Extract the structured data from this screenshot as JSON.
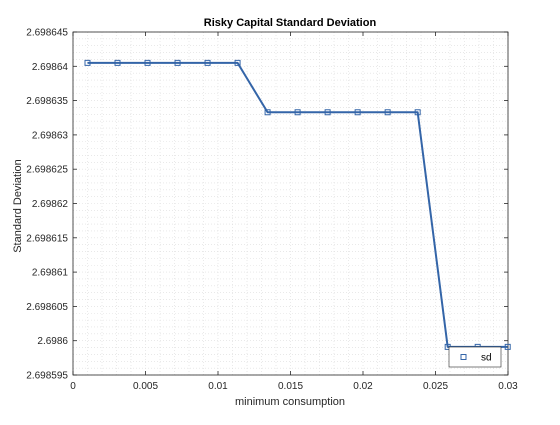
{
  "chart_data": {
    "type": "line",
    "title": "Risky Capital Standard Deviation",
    "xlabel": "minimum consumption",
    "ylabel": "Standard Deviation",
    "xlim": [
      0,
      0.03
    ],
    "ylim": [
      2.698595,
      2.698645
    ],
    "xticks": [
      0,
      0.005,
      0.01,
      0.015,
      0.02,
      0.025,
      0.03
    ],
    "xtick_labels": [
      "0",
      "0.005",
      "0.01",
      "0.015",
      "0.02",
      "0.025",
      "0.03"
    ],
    "yticks": [
      2.698595,
      2.6986,
      2.698605,
      2.69861,
      2.698615,
      2.69862,
      2.698625,
      2.69863,
      2.698635,
      2.69864,
      2.698645
    ],
    "ytick_labels": [
      "2.698595",
      "2.6986",
      "2.698605",
      "2.69861",
      "2.698615",
      "2.69862",
      "2.698625",
      "2.69863",
      "2.698635",
      "2.69864",
      "2.698645"
    ],
    "grid": "minor dotted",
    "legend_position": "bottom-right",
    "series": [
      {
        "name": "sd",
        "color": "#3465a8",
        "marker": "square",
        "x": [
          0.001,
          0.00307,
          0.00514,
          0.00721,
          0.00928,
          0.01135,
          0.01342,
          0.01549,
          0.01756,
          0.01963,
          0.0217,
          0.02377,
          0.02584,
          0.02791,
          0.02998
        ],
        "y": [
          2.6986405,
          2.6986405,
          2.6986405,
          2.6986405,
          2.6986405,
          2.6986405,
          2.6986333,
          2.6986333,
          2.6986333,
          2.6986333,
          2.6986333,
          2.6986333,
          2.6985991,
          2.6985991,
          2.6985991
        ]
      }
    ]
  }
}
